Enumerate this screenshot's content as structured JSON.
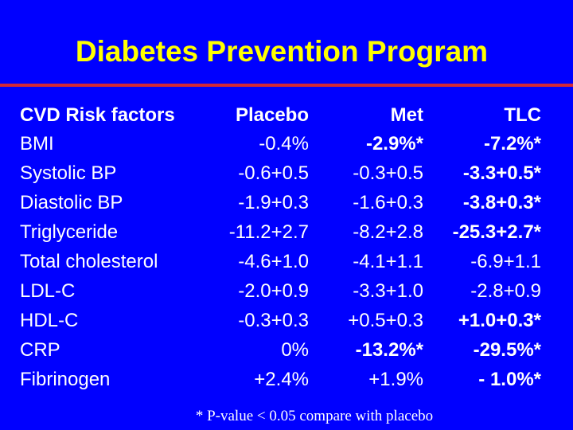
{
  "title": "Diabetes Prevention Program",
  "accent_colors": {
    "background": "#0000ff",
    "title": "#ffff00",
    "rule": "#d42838",
    "text": "#ffffff"
  },
  "table": {
    "headers": [
      "CVD Risk factors",
      "Placebo",
      "Met",
      "TLC"
    ],
    "rows": [
      {
        "factor": "BMI",
        "placebo": "-0.4%",
        "met": "-2.9%*",
        "tlc": "-7.2%*",
        "bold_met": true,
        "bold_tlc": true
      },
      {
        "factor": "Systolic BP",
        "placebo": "-0.6+0.5",
        "met": "-0.3+0.5",
        "tlc": "-3.3+0.5*",
        "bold_met": false,
        "bold_tlc": true
      },
      {
        "factor": "Diastolic BP",
        "placebo": "-1.9+0.3",
        "met": "-1.6+0.3",
        "tlc": "-3.8+0.3*",
        "bold_met": false,
        "bold_tlc": true
      },
      {
        "factor": "Triglyceride",
        "placebo": "-11.2+2.7",
        "met": "-8.2+2.8",
        "tlc": "-25.3+2.7*",
        "bold_met": false,
        "bold_tlc": true
      },
      {
        "factor": "Total cholesterol",
        "placebo": "-4.6+1.0",
        "met": "-4.1+1.1",
        "tlc": "-6.9+1.1",
        "bold_met": false,
        "bold_tlc": false
      },
      {
        "factor": "LDL-C",
        "placebo": "-2.0+0.9",
        "met": "-3.3+1.0",
        "tlc": "-2.8+0.9",
        "bold_met": false,
        "bold_tlc": false
      },
      {
        "factor": "HDL-C",
        "placebo": "-0.3+0.3",
        "met": "+0.5+0.3",
        "tlc": "+1.0+0.3*",
        "bold_met": false,
        "bold_tlc": true
      },
      {
        "factor": "CRP",
        "placebo": "0%",
        "met": "-13.2%*",
        "tlc": "-29.5%*",
        "bold_met": true,
        "bold_tlc": true
      },
      {
        "factor": "Fibrinogen",
        "placebo": "+2.4%",
        "met": "+1.9%",
        "tlc": "- 1.0%*",
        "bold_met": false,
        "bold_tlc": true
      }
    ]
  },
  "footnote": "* P-value < 0.05 compare with placebo"
}
